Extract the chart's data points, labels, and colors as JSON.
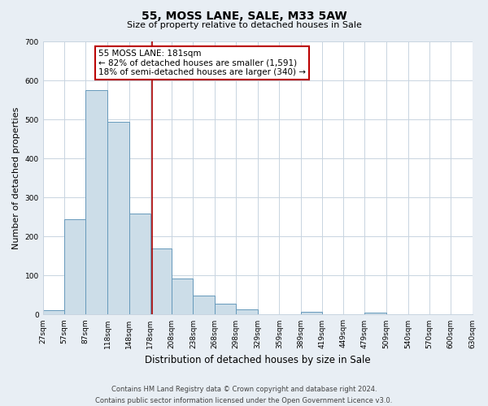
{
  "title": "55, MOSS LANE, SALE, M33 5AW",
  "subtitle": "Size of property relative to detached houses in Sale",
  "xlabel": "Distribution of detached houses by size in Sale",
  "ylabel": "Number of detached properties",
  "footer_line1": "Contains HM Land Registry data © Crown copyright and database right 2024.",
  "footer_line2": "Contains public sector information licensed under the Open Government Licence v3.0.",
  "bar_edges": [
    27,
    57,
    87,
    118,
    148,
    178,
    208,
    238,
    268,
    298,
    329,
    359,
    389,
    419,
    449,
    479,
    509,
    540,
    570,
    600,
    630
  ],
  "bar_heights": [
    12,
    245,
    575,
    493,
    258,
    170,
    92,
    48,
    27,
    13,
    0,
    0,
    8,
    0,
    0,
    5,
    0,
    0,
    0,
    0
  ],
  "bar_color": "#ccdde8",
  "bar_edge_color": "#6699bb",
  "vline_x": 181,
  "vline_color": "#aa0000",
  "annotation_line1": "55 MOSS LANE: 181sqm",
  "annotation_line2": "← 82% of detached houses are smaller (1,591)",
  "annotation_line3": "18% of semi-detached houses are larger (340) →",
  "annotation_box_color": "#ffffff",
  "annotation_box_edge_color": "#bb0000",
  "ylim": [
    0,
    700
  ],
  "yticks": [
    0,
    100,
    200,
    300,
    400,
    500,
    600,
    700
  ],
  "bg_color": "#e8eef4",
  "plot_bg_color": "#ffffff",
  "grid_color": "#c8d4e0",
  "title_fontsize": 10,
  "subtitle_fontsize": 8,
  "ylabel_fontsize": 8,
  "xlabel_fontsize": 8.5,
  "tick_fontsize": 6.5,
  "footer_fontsize": 6.0
}
